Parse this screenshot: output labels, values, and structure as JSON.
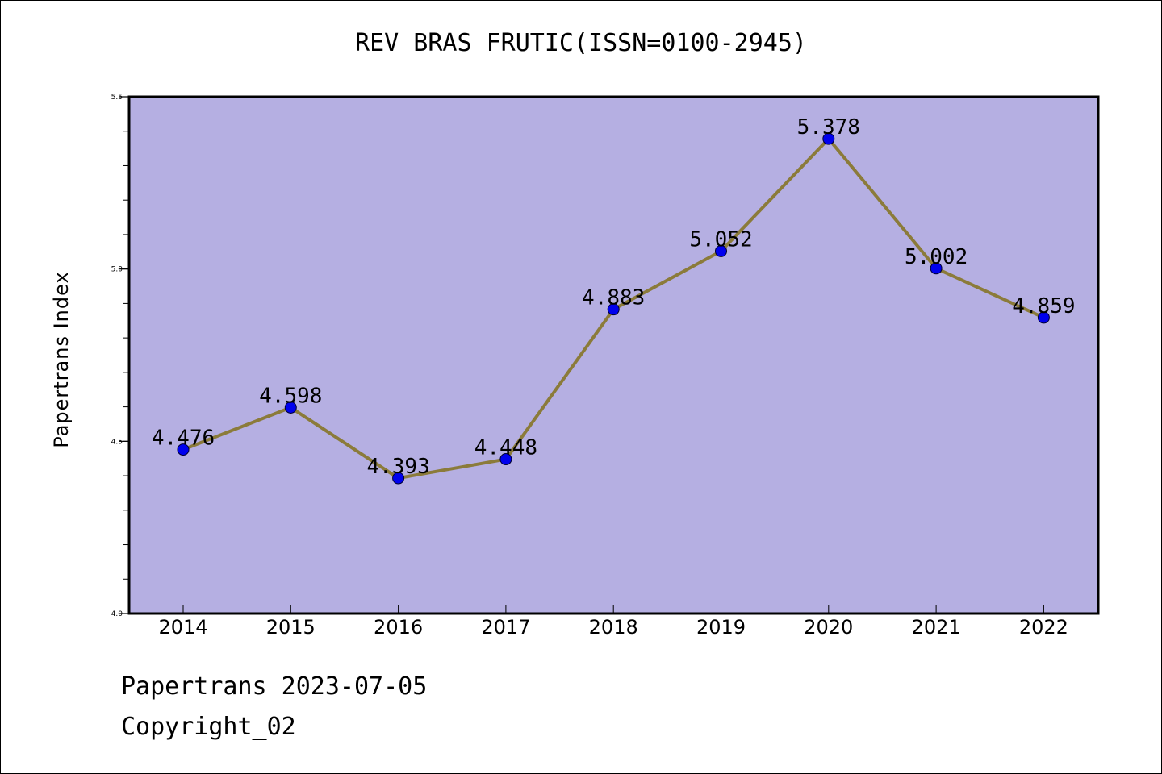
{
  "title": "REV BRAS FRUTIC(ISSN=0100-2945)",
  "footer": {
    "line1": "Papertrans 2023-07-05",
    "line2": "Copyright_02"
  },
  "colors": {
    "plot_background": "#b5afe2",
    "line": "#8b7b3a",
    "marker": "#0000ee"
  },
  "chart_data": {
    "type": "line",
    "title": "REV BRAS FRUTIC(ISSN=0100-2945)",
    "xlabel": "",
    "ylabel": "Papertrans Index",
    "categories": [
      "2014",
      "2015",
      "2016",
      "2017",
      "2018",
      "2019",
      "2020",
      "2021",
      "2022"
    ],
    "values": [
      4.476,
      4.598,
      4.393,
      4.448,
      4.883,
      5.052,
      5.378,
      5.002,
      4.859
    ],
    "data_labels": [
      "4.476",
      "4.598",
      "4.393",
      "4.448",
      "4.883",
      "5.052",
      "5.378",
      "5.002",
      "4.859"
    ],
    "ylim": [
      4.0,
      5.5
    ],
    "yticks": [
      "4.0",
      "4.5",
      "5.0",
      "5.5"
    ],
    "ytick_values": [
      4.0,
      4.5,
      5.0,
      5.5
    ],
    "grid": false,
    "legend": "none"
  }
}
